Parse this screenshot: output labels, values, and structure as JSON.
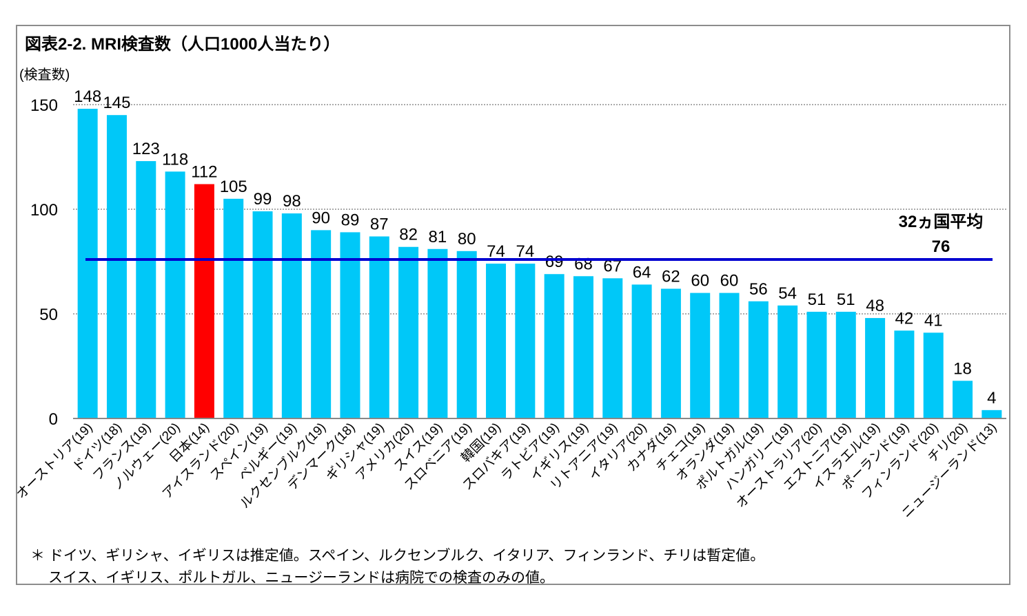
{
  "chart_data": {
    "type": "bar",
    "title": "図表2-2. MRI検査数（人口1000人当たり）",
    "ylabel": "(検査数)",
    "ylim": [
      0,
      150
    ],
    "yticks": [
      0,
      50,
      100,
      150
    ],
    "grid": true,
    "categories": [
      "オーストリア(19)",
      "ドイツ(18)",
      "フランス(19)",
      "ノルウェー(20)",
      "日本(14)",
      "アイスランド(20)",
      "スペイン(19)",
      "ベルギー(19)",
      "ルクセンブルク(19)",
      "デンマーク(18)",
      "ギリシャ(19)",
      "アメリカ(20)",
      "スイス(19)",
      "スロベニア(19)",
      "韓国(19)",
      "スロバキア(19)",
      "ラトビア(19)",
      "イギリス(19)",
      "リトアニア(19)",
      "イタリア(20)",
      "カナダ(19)",
      "チェコ(19)",
      "オランダ(19)",
      "ポルトガル(19)",
      "ハンガリー(19)",
      "オーストラリア(20)",
      "エストニア(19)",
      "イスラエル(19)",
      "ポーランド(19)",
      "フィンランド(20)",
      "チリ(20)",
      "ニュージーランド(13)"
    ],
    "values": [
      148,
      145,
      123,
      118,
      112,
      105,
      99,
      98,
      90,
      89,
      87,
      82,
      81,
      80,
      74,
      74,
      69,
      68,
      67,
      64,
      62,
      60,
      60,
      56,
      54,
      51,
      51,
      48,
      42,
      41,
      18,
      4
    ],
    "highlight_index": 4,
    "bar_color": "#00c8f8",
    "highlight_color": "#ff0000",
    "average": {
      "label": "32ヵ国平均",
      "value": 76,
      "value_label": "76",
      "color": "#0000d0"
    }
  },
  "note": {
    "line1": "＊ ドイツ、ギリシャ、イギリスは推定値。スペイン、ルクセンブルク、イタリア、フィンランド、チリは暫定値。",
    "line2": "スイス、イギリス、ポルトガル、ニュージーランドは病院での検査のみの値。"
  }
}
